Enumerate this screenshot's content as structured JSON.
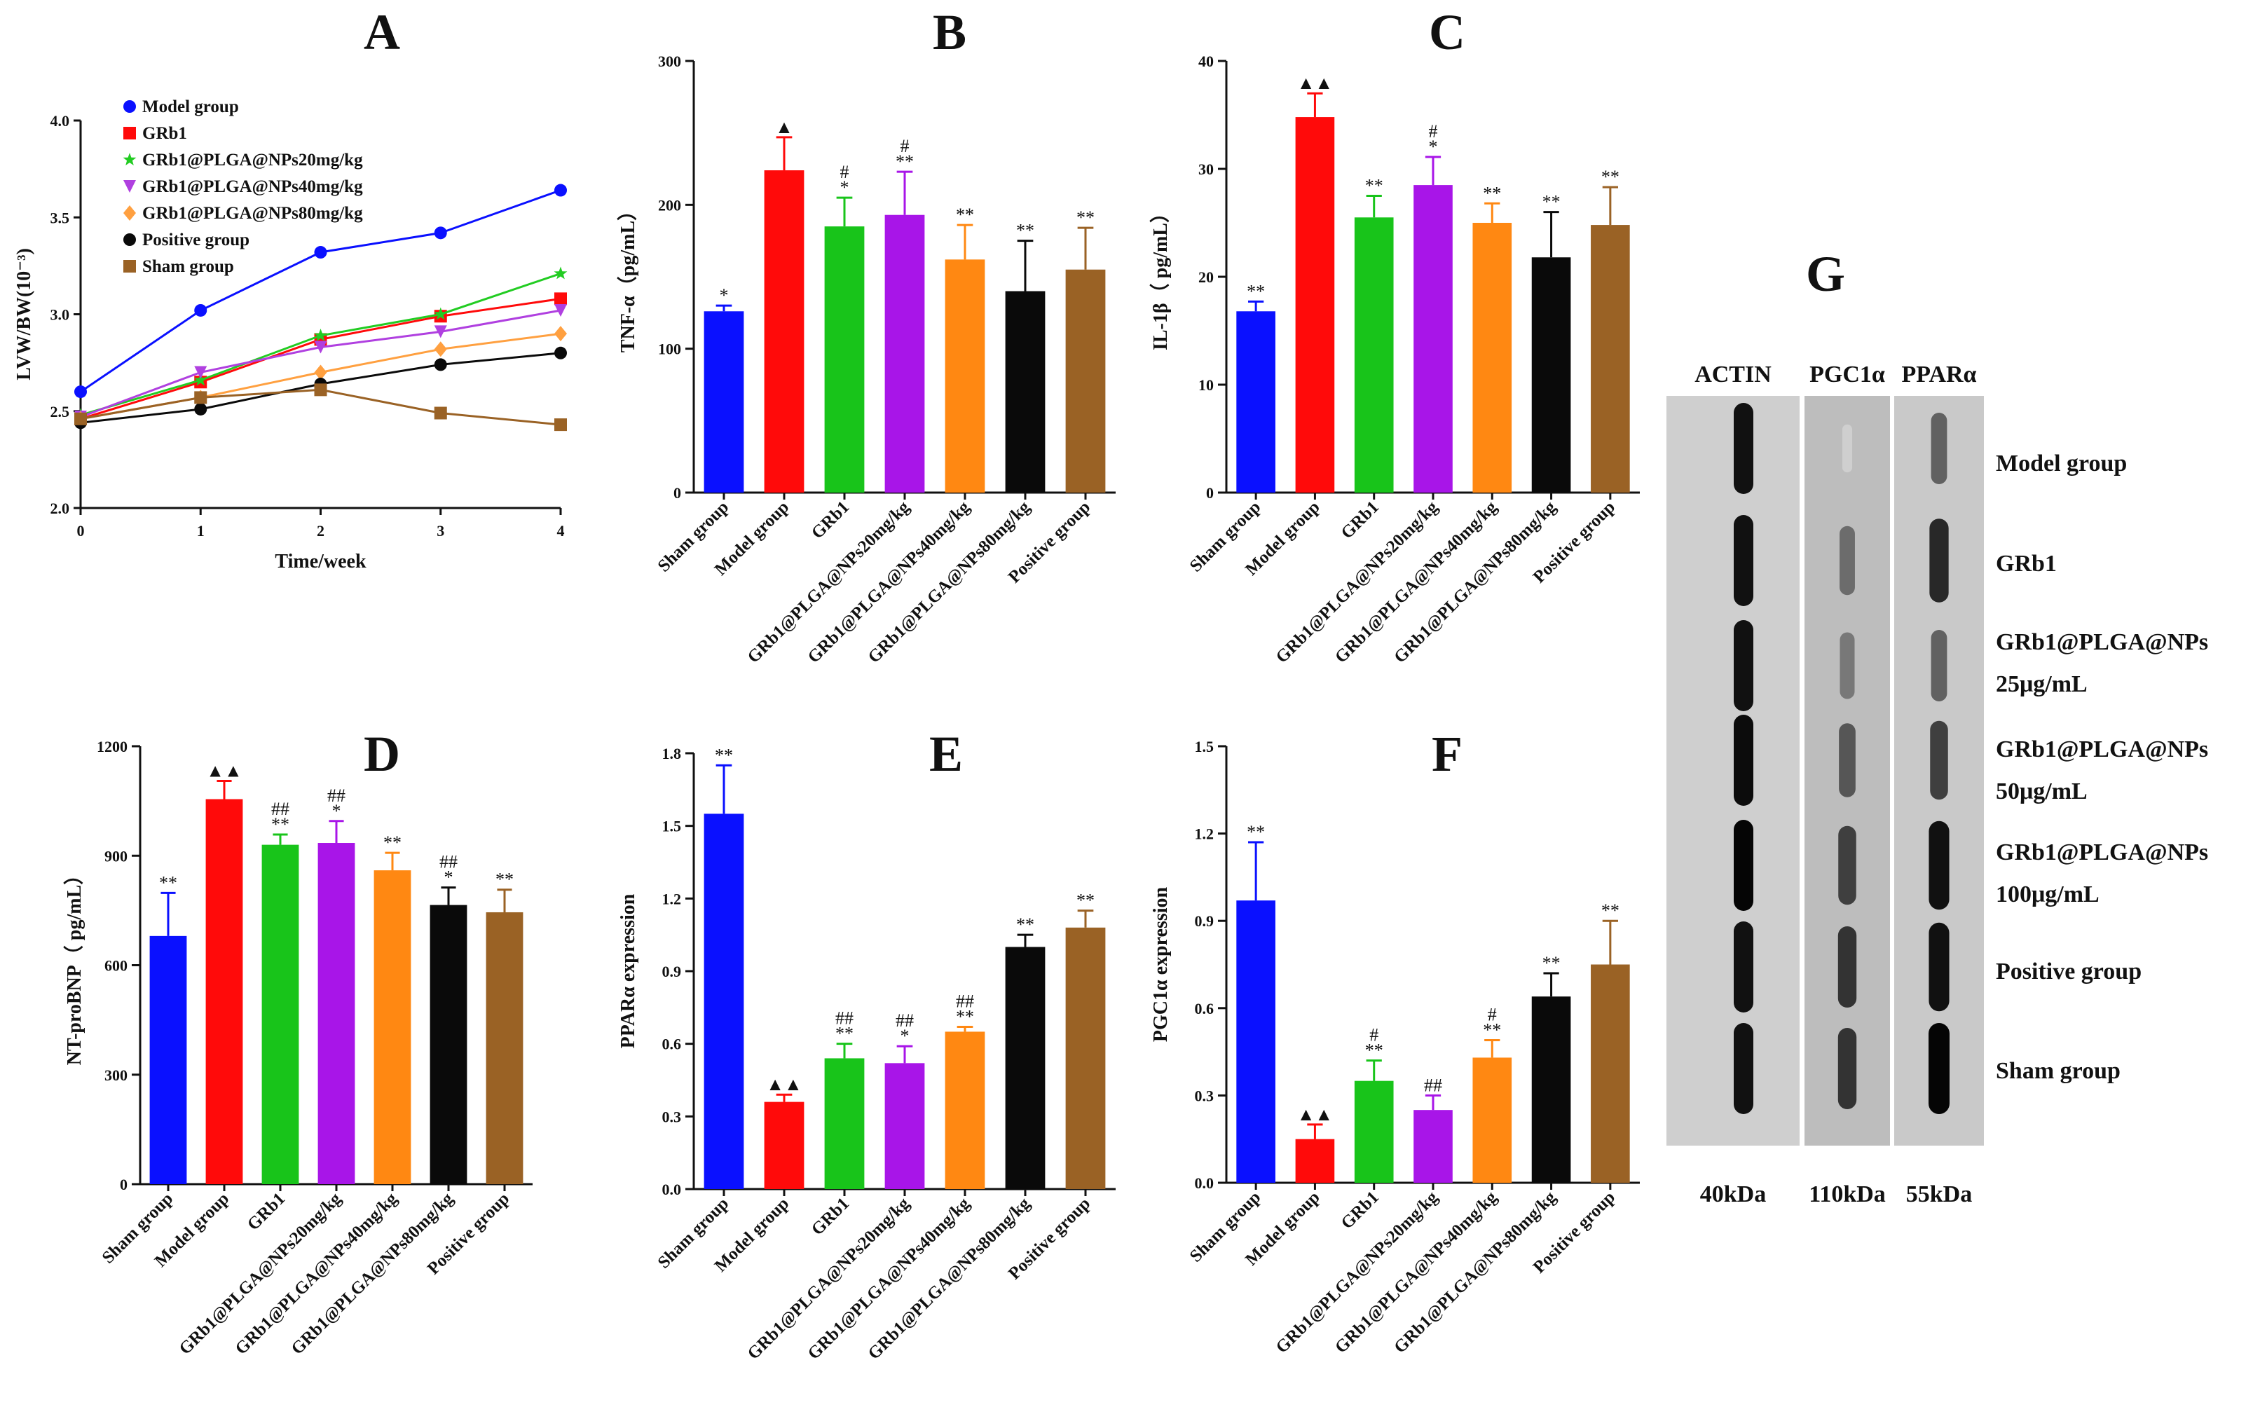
{
  "colors": {
    "blue": "#0a10ff",
    "red": "#ff0a0a",
    "green": "#18c41a",
    "purple": "#a815e8",
    "orange": "#ff8812",
    "black": "#0a0a0a",
    "brown": "#9a6225",
    "line_green": "#22cc22",
    "line_purple": "#b040e0",
    "line_orange": "#ffa040"
  },
  "icons": {
    "up_triangle": "▲",
    "double_up_triangle": "▲▲"
  },
  "chart_data": [
    {
      "panel": "A",
      "type": "line",
      "xlabel": "Time/week",
      "ylabel": "LVW/BW(10⁻³)",
      "x": [
        0,
        1,
        2,
        3,
        4
      ],
      "xlim": [
        0,
        4
      ],
      "ylim": [
        2.0,
        4.0
      ],
      "yticks": [
        "2.0",
        "2.5",
        "3.0",
        "3.5",
        "4.0"
      ],
      "xticks": [
        "0",
        "1",
        "2",
        "3",
        "4"
      ],
      "legend_position": "top-left",
      "series": [
        {
          "name": "Model group",
          "color": "blue",
          "marker": "circle",
          "values": [
            2.6,
            3.02,
            3.32,
            3.42,
            3.64
          ]
        },
        {
          "name": "GRb1",
          "color": "red",
          "marker": "square",
          "values": [
            2.46,
            2.65,
            2.87,
            2.99,
            3.08
          ]
        },
        {
          "name": "GRb1@PLGA@NPs20mg/kg",
          "color": "line_green",
          "marker": "star",
          "values": [
            2.48,
            2.66,
            2.89,
            3.0,
            3.21
          ]
        },
        {
          "name": "GRb1@PLGA@NPs40mg/kg",
          "color": "line_purple",
          "marker": "down-triangle",
          "values": [
            2.47,
            2.7,
            2.83,
            2.91,
            3.02
          ]
        },
        {
          "name": "GRb1@PLGA@NPs80mg/kg",
          "color": "line_orange",
          "marker": "diamond",
          "values": [
            2.46,
            2.57,
            2.7,
            2.82,
            2.9
          ]
        },
        {
          "name": "Positive group",
          "color": "black",
          "marker": "circle",
          "values": [
            2.44,
            2.51,
            2.64,
            2.74,
            2.8
          ]
        },
        {
          "name": "Sham group",
          "color": "brown",
          "marker": "square",
          "values": [
            2.46,
            2.57,
            2.61,
            2.49,
            2.43
          ]
        }
      ]
    },
    {
      "panel": "B",
      "type": "bar",
      "ylabel": "TNF-α（pg/mL）",
      "ylim": [
        0,
        300
      ],
      "yticks": [
        "0",
        "100",
        "200",
        "300"
      ],
      "categories": [
        "Sham group",
        "Model group",
        "GRb1",
        "GRb1@PLGA@NPs20mg/kg",
        "GRb1@PLGA@NPs40mg/kg",
        "GRb1@PLGA@NPs80mg/kg",
        "Positive group"
      ],
      "colors": [
        "blue",
        "red",
        "green",
        "purple",
        "orange",
        "black",
        "brown"
      ],
      "values": [
        126,
        224,
        185,
        193,
        162,
        140,
        155
      ],
      "errors": [
        4,
        23,
        20,
        30,
        24,
        35,
        29
      ],
      "annotations": [
        [
          "*"
        ],
        [
          "▲"
        ],
        [
          "*",
          "#"
        ],
        [
          "**",
          "#"
        ],
        [
          "**"
        ],
        [
          "**"
        ],
        [
          "**"
        ]
      ]
    },
    {
      "panel": "C",
      "type": "bar",
      "ylabel": "IL-1β（ pg/mL）",
      "ylim": [
        0,
        40
      ],
      "yticks": [
        "0",
        "10",
        "20",
        "30",
        "40"
      ],
      "categories": [
        "Sham group",
        "Model group",
        "GRb1",
        "GRb1@PLGA@NPs20mg/kg",
        "GRb1@PLGA@NPs40mg/kg",
        "GRb1@PLGA@NPs80mg/kg",
        "Positive group"
      ],
      "colors": [
        "blue",
        "red",
        "green",
        "purple",
        "orange",
        "black",
        "brown"
      ],
      "values": [
        16.8,
        34.8,
        25.5,
        28.5,
        25,
        21.8,
        24.8
      ],
      "errors": [
        0.9,
        2.2,
        2.0,
        2.6,
        1.8,
        4.2,
        3.5
      ],
      "annotations": [
        [
          "**"
        ],
        [
          "▲▲"
        ],
        [
          "**"
        ],
        [
          "*",
          "#"
        ],
        [
          "**"
        ],
        [
          "**"
        ],
        [
          "**"
        ]
      ]
    },
    {
      "panel": "D",
      "type": "bar",
      "ylabel": "NT-proBNP（ pg/mL）",
      "ylim": [
        0,
        1200
      ],
      "yticks": [
        "0",
        "300",
        "600",
        "900",
        "1200"
      ],
      "categories": [
        "Sham group",
        "Model group",
        "GRb1",
        "GRb1@PLGA@NPs20mg/kg",
        "GRb1@PLGA@NPs40mg/kg",
        "GRb1@PLGA@NPs80mg/kg",
        "Positive group"
      ],
      "colors": [
        "blue",
        "red",
        "green",
        "purple",
        "orange",
        "black",
        "brown"
      ],
      "values": [
        680,
        1055,
        930,
        935,
        860,
        765,
        745
      ],
      "errors": [
        118,
        50,
        28,
        60,
        48,
        48,
        62
      ],
      "annotations": [
        [
          "**"
        ],
        [
          "▲▲"
        ],
        [
          "**",
          "##"
        ],
        [
          "*",
          "##"
        ],
        [
          "**"
        ],
        [
          "*",
          "##"
        ],
        [
          "**"
        ]
      ]
    },
    {
      "panel": "E",
      "type": "bar",
      "ylabel": "PPARα expression",
      "ylim": [
        0,
        1.8
      ],
      "yticks": [
        "0.0",
        "0.3",
        "0.6",
        "0.9",
        "1.2",
        "1.5",
        "1.8"
      ],
      "categories": [
        "Sham group",
        "Model group",
        "GRb1",
        "GRb1@PLGA@NPs20mg/kg",
        "GRb1@PLGA@NPs40mg/kg",
        "GRb1@PLGA@NPs80mg/kg",
        "Positive group"
      ],
      "colors": [
        "blue",
        "red",
        "green",
        "purple",
        "orange",
        "black",
        "brown"
      ],
      "values": [
        1.55,
        0.36,
        0.54,
        0.52,
        0.65,
        1.0,
        1.08
      ],
      "errors": [
        0.2,
        0.03,
        0.06,
        0.07,
        0.02,
        0.05,
        0.07
      ],
      "annotations": [
        [
          "**"
        ],
        [
          "▲▲"
        ],
        [
          "**",
          "##"
        ],
        [
          "*",
          "##"
        ],
        [
          "**",
          "##"
        ],
        [
          "**"
        ],
        [
          "**"
        ]
      ]
    },
    {
      "panel": "F",
      "type": "bar",
      "ylabel": "PGC1α expression",
      "ylim": [
        0,
        1.5
      ],
      "yticks": [
        "0.0",
        "0.3",
        "0.6",
        "0.9",
        "1.2",
        "1.5"
      ],
      "categories": [
        "Sham group",
        "Model group",
        "GRb1",
        "GRb1@PLGA@NPs20mg/kg",
        "GRb1@PLGA@NPs40mg/kg",
        "GRb1@PLGA@NPs80mg/kg",
        "Positive group"
      ],
      "colors": [
        "blue",
        "red",
        "green",
        "purple",
        "orange",
        "black",
        "brown"
      ],
      "values": [
        0.97,
        0.15,
        0.35,
        0.25,
        0.43,
        0.64,
        0.75
      ],
      "errors": [
        0.2,
        0.05,
        0.07,
        0.05,
        0.06,
        0.08,
        0.15
      ],
      "annotations": [
        [
          "**"
        ],
        [
          "▲▲"
        ],
        [
          "**",
          "#"
        ],
        [
          "##"
        ],
        [
          "**",
          "#"
        ],
        [
          "**"
        ],
        [
          "**"
        ]
      ]
    }
  ],
  "blot": {
    "panel": "G",
    "columns": [
      {
        "name": "ACTIN",
        "kda": "40kDa"
      },
      {
        "name": "PGC1α",
        "kda": "110kDa"
      },
      {
        "name": "PPARα",
        "kda": "55kDa"
      }
    ],
    "rows": [
      {
        "lines": [
          "Model group"
        ],
        "intensity": [
          0.95,
          0.12,
          0.6
        ]
      },
      {
        "lines": [
          "GRb1"
        ],
        "intensity": [
          0.95,
          0.55,
          0.85
        ]
      },
      {
        "lines": [
          "GRb1@PLGA@NPs",
          "25μg/mL"
        ],
        "intensity": [
          0.95,
          0.5,
          0.6
        ]
      },
      {
        "lines": [
          "GRb1@PLGA@NPs",
          "50μg/mL"
        ],
        "intensity": [
          0.97,
          0.65,
          0.75
        ]
      },
      {
        "lines": [
          "GRb1@PLGA@NPs",
          "100μg/mL"
        ],
        "intensity": [
          1.0,
          0.75,
          0.95
        ]
      },
      {
        "lines": [
          "Positive group"
        ],
        "intensity": [
          0.95,
          0.8,
          0.95
        ]
      },
      {
        "lines": [
          "Sham group"
        ],
        "intensity": [
          0.95,
          0.8,
          1.0
        ]
      }
    ]
  }
}
